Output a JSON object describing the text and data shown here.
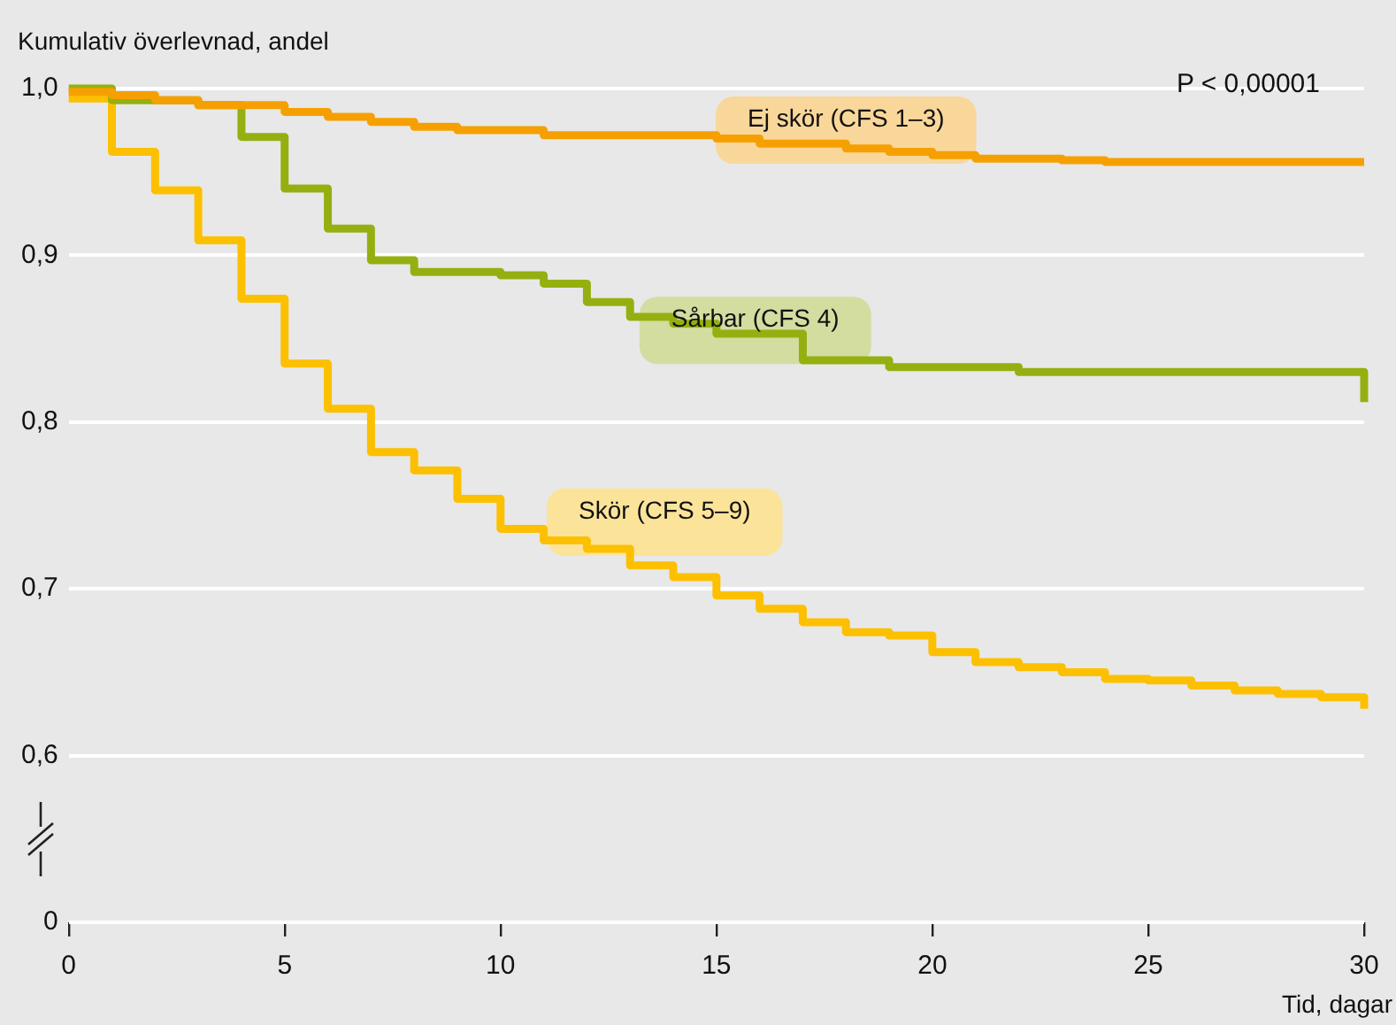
{
  "chart_data": {
    "type": "step",
    "xlabel": "Tid, dagar",
    "ylabel": "Kumulativ överlevnad, andel",
    "annotations": [
      "P < 0,00001"
    ],
    "xlim": [
      0,
      30
    ],
    "xticks": [
      0,
      5,
      10,
      15,
      20,
      25,
      30
    ],
    "ylim": [
      0.5,
      1.0
    ],
    "yticks": [
      {
        "value": 0.5,
        "label": "0"
      },
      {
        "value": 0.6,
        "label": "0,6"
      },
      {
        "value": 0.7,
        "label": "0,7"
      },
      {
        "value": 0.8,
        "label": "0,8"
      },
      {
        "value": 0.9,
        "label": "0,9"
      },
      {
        "value": 1.0,
        "label": "1,0"
      }
    ],
    "grid": "y",
    "legend": false,
    "marker": "none",
    "line_style": "solid",
    "series": [
      {
        "name": "Ej skör (CFS 1–3)",
        "color": "#f5a000",
        "x": [
          0,
          1,
          2,
          3,
          5,
          6,
          7,
          8,
          9,
          11,
          15,
          16,
          18,
          19,
          20,
          21,
          23,
          24,
          30
        ],
        "values": [
          0.998,
          0.996,
          0.993,
          0.99,
          0.986,
          0.983,
          0.98,
          0.977,
          0.975,
          0.972,
          0.97,
          0.967,
          0.964,
          0.962,
          0.96,
          0.958,
          0.957,
          0.956,
          0.956
        ]
      },
      {
        "name": "Sårbar (CFS 4)",
        "color": "#94b010",
        "x": [
          0,
          1,
          3,
          4,
          5,
          6,
          7,
          8,
          10,
          11,
          12,
          13,
          14,
          15,
          17,
          19,
          22,
          30
        ],
        "values": [
          1.0,
          0.993,
          0.99,
          0.971,
          0.94,
          0.916,
          0.897,
          0.89,
          0.888,
          0.883,
          0.872,
          0.863,
          0.859,
          0.853,
          0.837,
          0.833,
          0.83,
          0.812
        ]
      },
      {
        "name": "Skör (CFS 5–9)",
        "color": "#fcc000",
        "x": [
          0,
          1,
          2,
          3,
          4,
          5,
          6,
          7,
          8,
          9,
          10,
          11,
          12,
          13,
          14,
          15,
          16,
          17,
          18,
          19,
          20,
          21,
          22,
          23,
          24,
          25,
          26,
          27,
          28,
          29,
          30
        ],
        "values": [
          0.994,
          0.962,
          0.939,
          0.909,
          0.874,
          0.835,
          0.808,
          0.782,
          0.771,
          0.754,
          0.736,
          0.729,
          0.724,
          0.714,
          0.707,
          0.696,
          0.688,
          0.68,
          0.674,
          0.672,
          0.662,
          0.656,
          0.653,
          0.65,
          0.646,
          0.645,
          0.642,
          0.639,
          0.637,
          0.635,
          0.628
        ]
      }
    ]
  }
}
